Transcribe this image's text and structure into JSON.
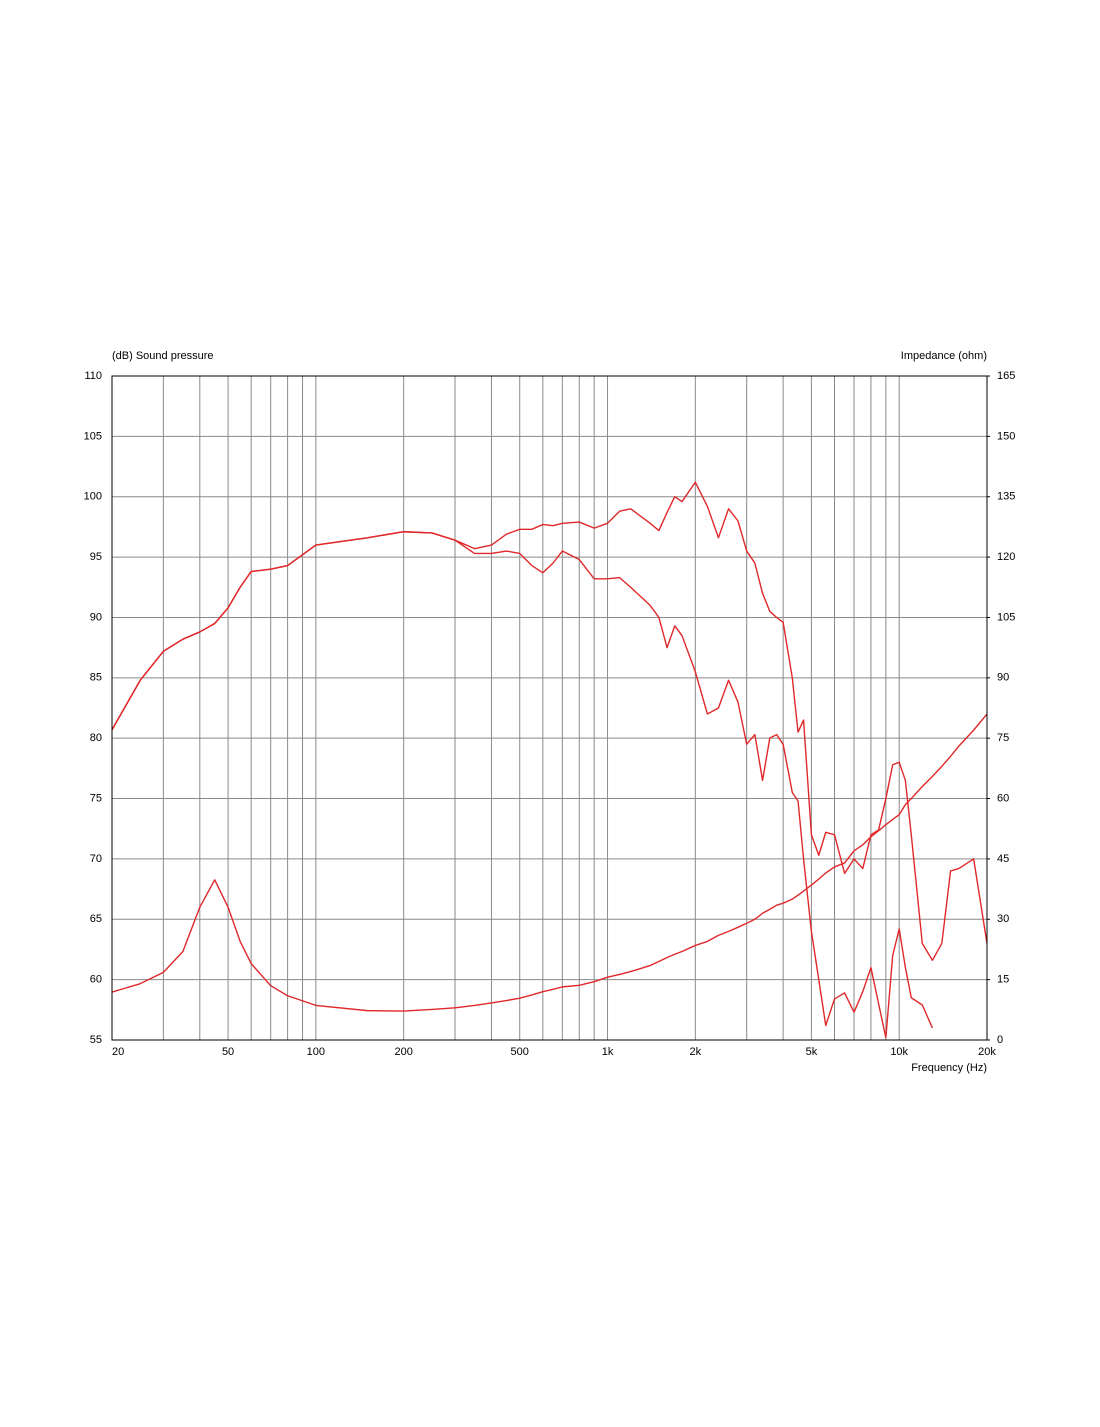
{
  "chart_data": {
    "type": "line",
    "y_label": "(dB)  Sound pressure",
    "y2_label": "Impedance  (ohm)",
    "x_label": "Frequency  (Hz)",
    "log_x": true,
    "grid": true,
    "xlim": [
      20,
      20000
    ],
    "xticks": [
      20,
      50,
      100,
      200,
      500,
      {
        "value": 1000,
        "label": "1k"
      },
      {
        "value": 2000,
        "label": "2k"
      },
      {
        "value": 5000,
        "label": "5k"
      },
      {
        "value": 10000,
        "label": "10k"
      },
      {
        "value": 20000,
        "label": "20k"
      }
    ],
    "xminorticks": [
      30,
      40,
      60,
      70,
      80,
      90,
      300,
      400,
      600,
      700,
      800,
      900,
      3000,
      4000,
      6000,
      7000,
      8000,
      9000
    ],
    "ylim": [
      55,
      110
    ],
    "yticks": [
      55,
      60,
      65,
      70,
      75,
      80,
      85,
      90,
      95,
      100,
      105,
      110
    ],
    "y2lim": [
      0,
      165
    ],
    "y2ticks": [
      0,
      15,
      30,
      45,
      60,
      75,
      90,
      105,
      120,
      135,
      150,
      165
    ],
    "x": [
      20,
      25,
      30,
      35,
      40,
      45,
      50,
      55,
      60,
      70,
      80,
      100,
      150,
      200,
      250,
      300,
      350,
      400,
      450,
      500,
      550,
      600,
      650,
      700,
      800,
      900,
      1000,
      1100,
      1200,
      1400,
      1500,
      1600,
      1700,
      1800,
      2000,
      2200,
      2400,
      2600,
      2800,
      3000,
      3200,
      3400,
      3600,
      3800,
      4000,
      4300,
      4500,
      4700,
      5000,
      5300,
      5600,
      6000,
      6500,
      7000,
      7500,
      8000,
      8500,
      9000,
      9500,
      10000,
      10500,
      11000,
      12000,
      13000,
      14000,
      15000,
      16000,
      18000,
      20000
    ],
    "series": [
      {
        "color": "#e0282a",
        "values": [
          80.7,
          84.8,
          87.2,
          88.2,
          88.8,
          89.5,
          90.8,
          92.5,
          93.8,
          94,
          94.3,
          96,
          96.6,
          97.1,
          97,
          96.4,
          95.7,
          96,
          96.9,
          97.3,
          97.3,
          97.7,
          97.6,
          97.8,
          97.9,
          97.4,
          97.8,
          98.8,
          99,
          97.8,
          97.2,
          98.7,
          100,
          99.6,
          101.2,
          99.2,
          96.6,
          99,
          98,
          95.5,
          94.5,
          92,
          90.5,
          90,
          89.6,
          85,
          80.5,
          81.5,
          72,
          70.3,
          72.2,
          72,
          68.8,
          70,
          69.2,
          72,
          72.4,
          75,
          77.8,
          78,
          76.5,
          72,
          63,
          61.6,
          63,
          69,
          69.2,
          70,
          63
        ]
      },
      {
        "color": "#e0282a",
        "values": [
          80.7,
          84.8,
          87.2,
          88.2,
          88.8,
          89.5,
          90.8,
          92.5,
          93.8,
          94,
          94.3,
          96,
          96.6,
          97.1,
          97,
          96.4,
          95.3,
          95.3,
          95.5,
          95.3,
          94.3,
          93.7,
          94.5,
          95.5,
          94.8,
          93.2,
          93.2,
          93.3,
          92.5,
          91,
          90,
          87.5,
          89.3,
          88.5,
          85.5,
          82,
          82.5,
          84.8,
          83,
          79.5,
          80.3,
          76.5,
          80,
          80.3,
          79.5,
          75.5,
          74.8,
          70,
          64,
          60,
          56.2,
          58.4,
          58.9,
          57.3,
          59,
          61,
          58,
          55.2,
          62,
          64.2,
          61,
          58.5,
          57.9,
          56,
          null,
          null,
          null,
          null,
          null
        ]
      },
      {
        "color": "#e0282a",
        "axis": "y2",
        "values": [
          11.9,
          14,
          16.8,
          22,
          33,
          39.8,
          33,
          24.5,
          19,
          13.5,
          11,
          8.6,
          7.3,
          7.2,
          7.6,
          8,
          8.6,
          9.2,
          9.8,
          10.4,
          11.2,
          12,
          12.6,
          13.2,
          13.6,
          14.5,
          15.6,
          16.3,
          17,
          18.5,
          19.5,
          20.5,
          21.3,
          22,
          23.5,
          24.5,
          26,
          27,
          28,
          29,
          30,
          31.5,
          32.5,
          33.5,
          34,
          35,
          36,
          37,
          38.5,
          40,
          41.5,
          43,
          44,
          47,
          48.5,
          50.5,
          52,
          53.5,
          54.8,
          56,
          58.5,
          60,
          63,
          65.5,
          68,
          70.5,
          73,
          77,
          81
        ]
      }
    ]
  }
}
